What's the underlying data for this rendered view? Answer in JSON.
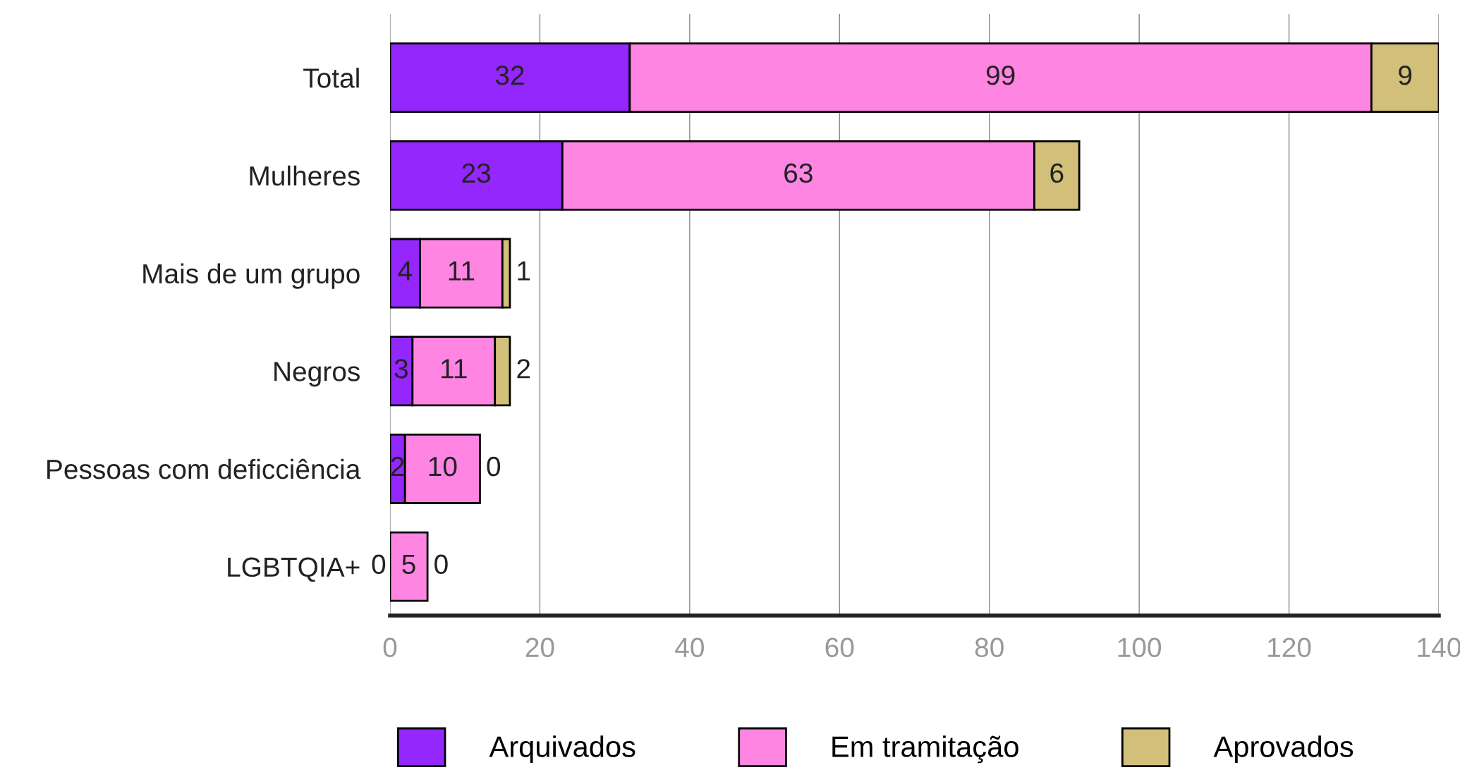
{
  "chart_data": {
    "type": "bar",
    "orientation": "horizontal",
    "stacked": true,
    "categories": [
      "Total",
      "Mulheres",
      "Mais de um grupo",
      "Negros",
      "Pessoas com deficciência",
      "LGBTQIA+"
    ],
    "series": [
      {
        "name": "Arquivados",
        "color": "#9327fc",
        "values": [
          32,
          23,
          4,
          3,
          2,
          0
        ]
      },
      {
        "name": "Em tramitação",
        "color": "#ff85e3",
        "values": [
          99,
          63,
          11,
          11,
          10,
          5
        ]
      },
      {
        "name": "Aprovados",
        "color": "#d1bf7a",
        "values": [
          9,
          6,
          1,
          2,
          0,
          0
        ]
      }
    ],
    "xlim": [
      0,
      140
    ],
    "xticks": [
      0,
      20,
      40,
      60,
      80,
      100,
      120,
      140
    ],
    "grid": "x",
    "legend": "bottom",
    "data_labels": true
  }
}
